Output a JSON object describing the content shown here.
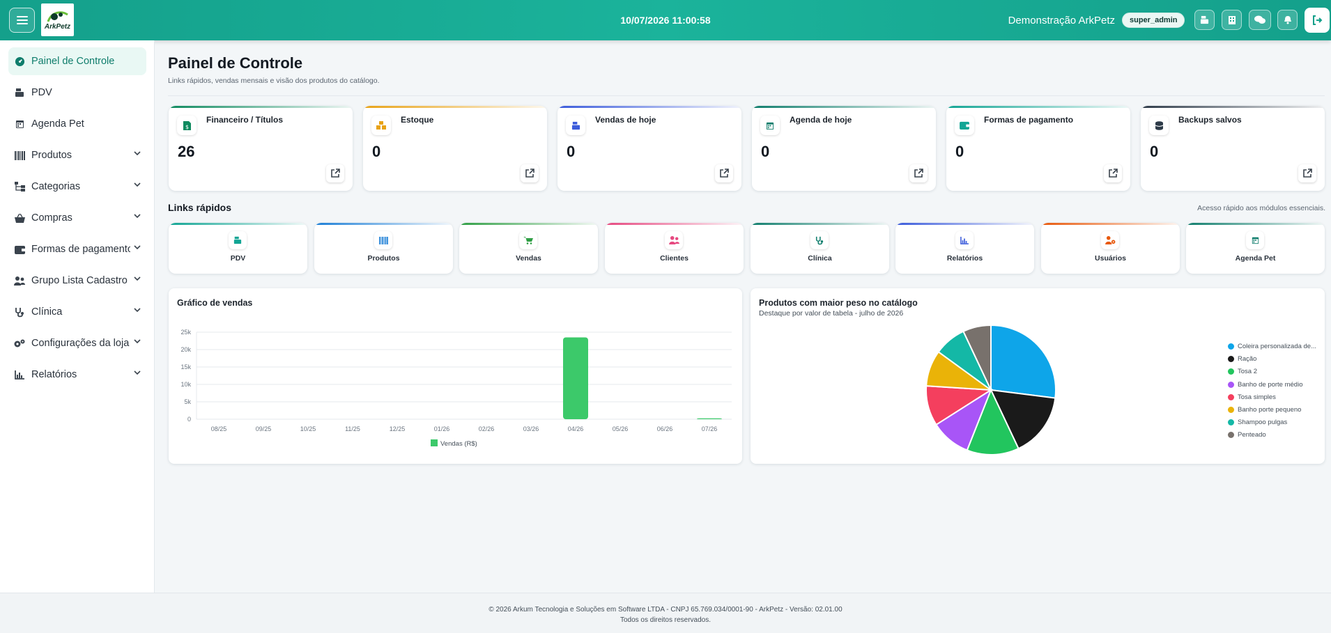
{
  "header": {
    "logo_text": "ArkPetz",
    "datetime": "10/07/2026 11:00:58",
    "company": "Demonstração ArkPetz",
    "role": "super_admin"
  },
  "sidebar": {
    "items": [
      {
        "label": "Painel de Controle",
        "icon": "dashboard-icon",
        "active": true
      },
      {
        "label": "PDV",
        "icon": "cash-register-icon"
      },
      {
        "label": "Agenda Pet",
        "icon": "calendar-icon"
      },
      {
        "label": "Produtos",
        "icon": "barcode-icon",
        "expandable": true
      },
      {
        "label": "Categorias",
        "icon": "sitemap-icon",
        "expandable": true
      },
      {
        "label": "Compras",
        "icon": "basket-icon",
        "expandable": true
      },
      {
        "label": "Formas de pagamento",
        "icon": "wallet-icon",
        "expandable": true
      },
      {
        "label": "Grupo Lista Cadastro",
        "icon": "users-icon",
        "expandable": true
      },
      {
        "label": "Clínica",
        "icon": "stethoscope-icon",
        "expandable": true
      },
      {
        "label": "Configurações da loja",
        "icon": "gears-icon",
        "expandable": true
      },
      {
        "label": "Relatórios",
        "icon": "chart-icon",
        "expandable": true
      }
    ]
  },
  "page": {
    "title": "Painel de Controle",
    "subtitle": "Links rápidos, vendas mensais e visão dos produtos do catálogo."
  },
  "cards": [
    {
      "title": "Financeiro / Títulos",
      "value": "26",
      "color": "#0f8a5f",
      "icon": "invoice-icon"
    },
    {
      "title": "Estoque",
      "value": "0",
      "color": "#e8a317",
      "icon": "boxes-icon"
    },
    {
      "title": "Vendas de hoje",
      "value": "0",
      "color": "#3b5bdb",
      "icon": "cash-register-icon"
    },
    {
      "title": "Agenda de hoje",
      "value": "0",
      "color": "#0f7d6c",
      "icon": "calendar-icon"
    },
    {
      "title": "Formas de pagamento",
      "value": "0",
      "color": "#12a594",
      "icon": "wallet-icon"
    },
    {
      "title": "Backups salvos",
      "value": "0",
      "color": "#2d3a48",
      "icon": "database-icon"
    }
  ],
  "quick_links": {
    "title": "Links rápidos",
    "note": "Acesso rápido aos módulos essenciais.",
    "items": [
      {
        "label": "PDV",
        "color": "#12a594",
        "icon": "cash-register-icon"
      },
      {
        "label": "Produtos",
        "color": "#1c7ed6",
        "icon": "barcode-icon"
      },
      {
        "label": "Vendas",
        "color": "#2f9e44",
        "icon": "cart-icon"
      },
      {
        "label": "Clientes",
        "color": "#e64980",
        "icon": "users-icon"
      },
      {
        "label": "Clínica",
        "color": "#0f7d6c",
        "icon": "stethoscope-icon"
      },
      {
        "label": "Relatórios",
        "color": "#3b5bdb",
        "icon": "chart-icon"
      },
      {
        "label": "Usuários",
        "color": "#e8590c",
        "icon": "users-cog-icon"
      },
      {
        "label": "Agenda Pet",
        "color": "#0f7d6c",
        "icon": "calendar-icon"
      }
    ]
  },
  "chart_data": [
    {
      "type": "bar",
      "title": "Gráfico de vendas",
      "categories": [
        "08/25",
        "09/25",
        "10/25",
        "11/25",
        "12/25",
        "01/26",
        "02/26",
        "03/26",
        "04/26",
        "05/26",
        "06/26",
        "07/26"
      ],
      "series": [
        {
          "name": "Vendas (R$)",
          "values": [
            0,
            0,
            0,
            0,
            0,
            0,
            0,
            0,
            23500,
            0,
            0,
            250
          ],
          "color": "#3cc96a"
        }
      ],
      "yticks": [
        "0",
        "5k",
        "10k",
        "15k",
        "20k",
        "25k"
      ],
      "ylim": [
        0,
        25000
      ],
      "grid": true,
      "legend": "bottom"
    },
    {
      "type": "pie",
      "title": "Produtos com maior peso no catálogo",
      "subtitle": "Destaque por valor de tabela - julho de 2026",
      "slices": [
        {
          "label": "Coleira personalizada de...",
          "value": 27,
          "color": "#0ea5e9"
        },
        {
          "label": "Ração",
          "value": 16,
          "color": "#1a1a1a"
        },
        {
          "label": "Tosa 2",
          "value": 13,
          "color": "#22c55e"
        },
        {
          "label": "Banho de porte médio",
          "value": 10,
          "color": "#a855f7"
        },
        {
          "label": "Tosa simples",
          "value": 10,
          "color": "#f43f5e"
        },
        {
          "label": "Banho porte pequeno",
          "value": 9,
          "color": "#eab308"
        },
        {
          "label": "Shampoo pulgas",
          "value": 8,
          "color": "#14b8a6"
        },
        {
          "label": "Penteado",
          "value": 7,
          "color": "#78716c"
        }
      ],
      "legend": "right"
    }
  ],
  "footer": {
    "line1": "© 2026 Arkum Tecnologia e Soluções em Software LTDA - CNPJ 65.769.034/0001-90 - ArkPetz - Versão: 02.01.00",
    "line2": "Todos os direitos reservados."
  }
}
